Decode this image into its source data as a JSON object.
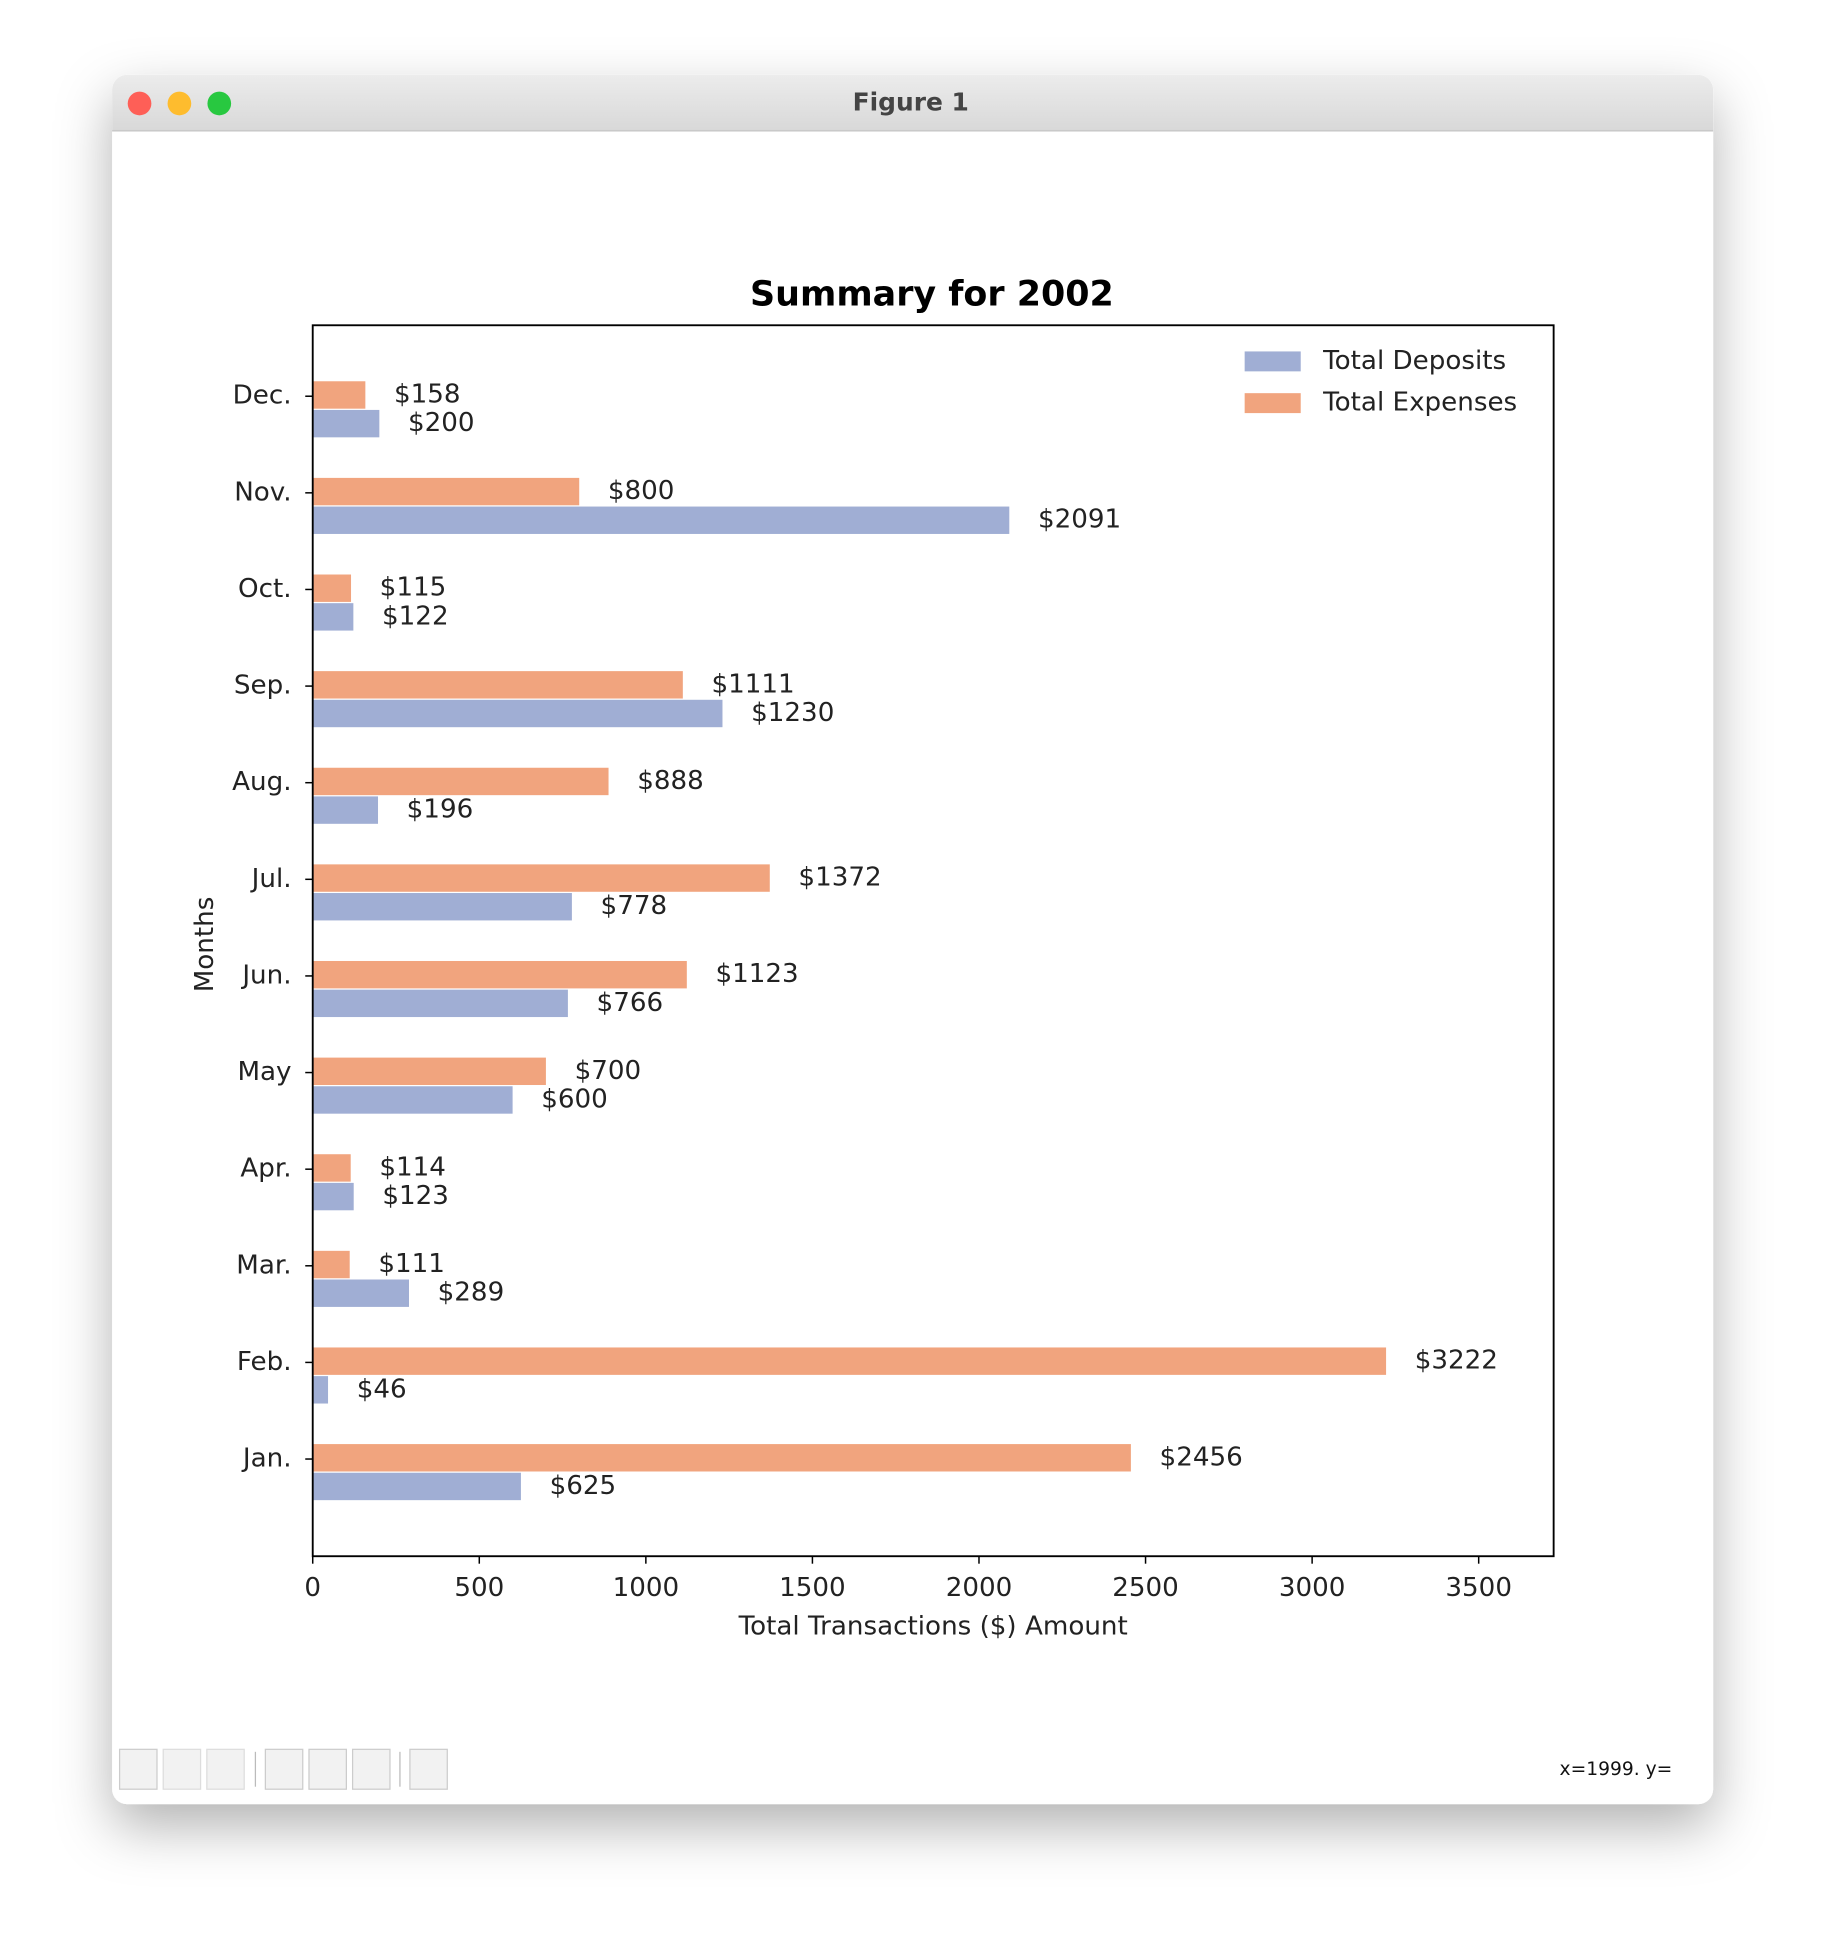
{
  "window_title": "Figure 1",
  "status_text": "x=1999. y=",
  "chart_data": {
    "type": "barh",
    "title": "Summary for 2002",
    "x_label": "Total Transactions ($) Amount",
    "y_label": "Months",
    "categories": [
      "Jan.",
      "Feb.",
      "Mar.",
      "Apr.",
      "May",
      "Jun.",
      "Jul.",
      "Aug.",
      "Sep.",
      "Oct.",
      "Nov.",
      "Dec."
    ],
    "series": [
      {
        "name": "Total Deposits",
        "color": "#a0aed4",
        "values": [
          625,
          46,
          289,
          123,
          600,
          766,
          778,
          196,
          1230,
          122,
          2091,
          200
        ],
        "value_labels": [
          "$625",
          "$46",
          "$289",
          "$123",
          "$600",
          "$766",
          "$778",
          "$196",
          "$1230",
          "$122",
          "$2091",
          "$200"
        ]
      },
      {
        "name": "Total Expenses",
        "color": "#f1a47e",
        "values": [
          2456,
          3222,
          111,
          114,
          700,
          1123,
          1372,
          888,
          1111,
          115,
          800,
          158
        ],
        "value_labels": [
          "$2456",
          "$3222",
          "$111",
          "$114",
          "$700",
          "$1123",
          "$1372",
          "$888",
          "$1111",
          "$115",
          "$800",
          "$158"
        ]
      }
    ],
    "xlim": [
      0,
      3725
    ],
    "xticks": [
      0,
      500,
      1000,
      1500,
      2000,
      2500,
      3000,
      3500
    ],
    "legend": "upper right"
  }
}
